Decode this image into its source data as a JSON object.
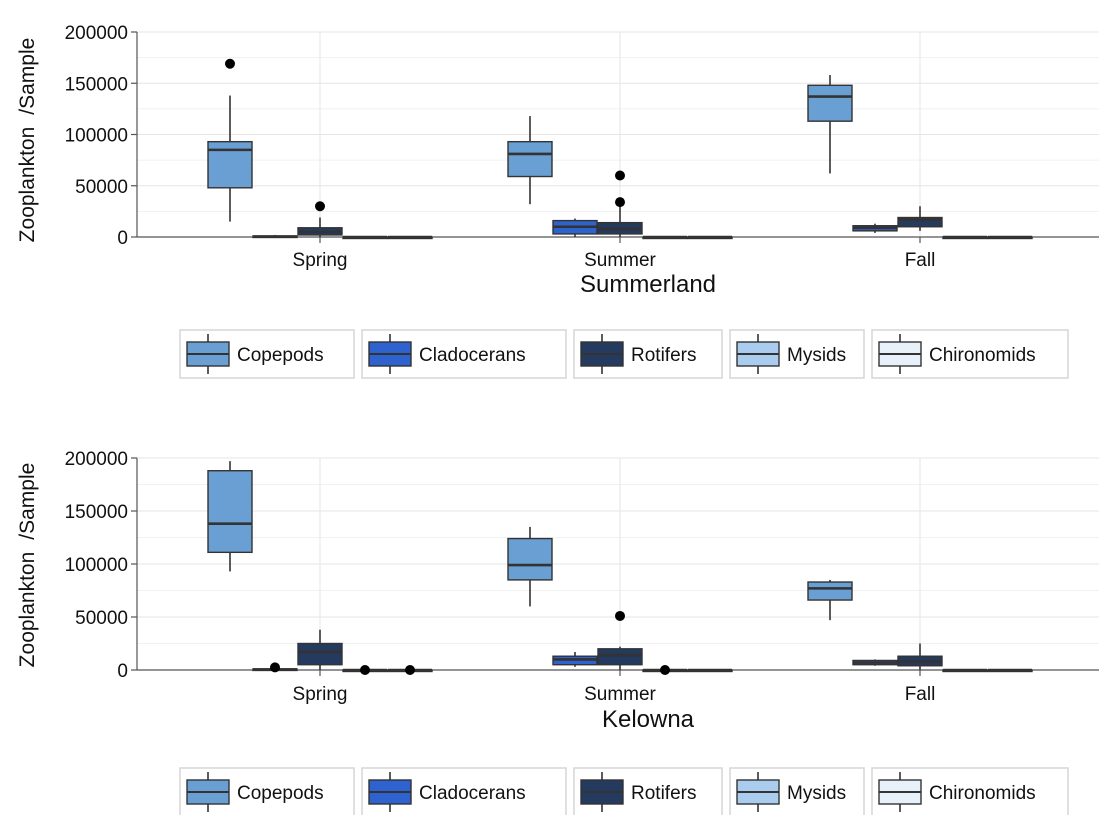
{
  "legend": [
    "Copepods",
    "Cladocerans",
    "Rotifers",
    "Mysids",
    "Chironomids"
  ],
  "colors": {
    "Copepods": "#6a9fd3",
    "Cladocerans": "#2e62cf",
    "Rotifers": "#253a5f",
    "Mysids": "#a9ccef",
    "Chironomids": "#e8f0fa",
    "grid": "#e6e6e6",
    "axis": "#555555",
    "box_line": "#333333"
  },
  "chart_data": [
    {
      "type": "box",
      "title": "",
      "xlabel": "Summerland",
      "ylabel_parts": [
        "Zooplankton",
        "/Sample"
      ],
      "ylim": [
        0,
        200000
      ],
      "yticks": [
        "0",
        "50000",
        "100000",
        "150000",
        "200000"
      ],
      "categories": [
        "Spring",
        "Summer",
        "Fall"
      ],
      "series": [
        {
          "name": "Copepods",
          "boxes": [
            {
              "min": 15000,
              "q1": 48000,
              "median": 85000,
              "q3": 93000,
              "max": 138000,
              "outliers": [
                169000
              ]
            },
            {
              "min": 32000,
              "q1": 59000,
              "median": 81000,
              "q3": 93000,
              "max": 118000,
              "outliers": []
            },
            {
              "min": 62000,
              "q1": 113000,
              "median": 137000,
              "q3": 148000,
              "max": 158000,
              "outliers": []
            }
          ]
        },
        {
          "name": "Cladocerans",
          "boxes": [
            {
              "min": 0,
              "q1": 0,
              "median": 500,
              "q3": 1000,
              "max": 2000,
              "outliers": []
            },
            {
              "min": 0,
              "q1": 3000,
              "median": 10000,
              "q3": 16000,
              "max": 18000,
              "outliers": []
            },
            {
              "min": 4000,
              "q1": 6000,
              "median": 9000,
              "q3": 11000,
              "max": 13000,
              "outliers": []
            }
          ]
        },
        {
          "name": "Rotifers",
          "boxes": [
            {
              "min": 0,
              "q1": 2000,
              "median": 5000,
              "q3": 9000,
              "max": 19000,
              "outliers": [
                30000
              ]
            },
            {
              "min": 0,
              "q1": 3000,
              "median": 8000,
              "q3": 14000,
              "max": 30000,
              "outliers": [
                34000,
                60000
              ]
            },
            {
              "min": 6000,
              "q1": 10000,
              "median": 17000,
              "q3": 19000,
              "max": 30000,
              "outliers": []
            }
          ]
        },
        {
          "name": "Mysids",
          "boxes": [
            {
              "min": 0,
              "q1": 0,
              "median": 0,
              "q3": 0,
              "max": 0,
              "outliers": []
            },
            {
              "min": 0,
              "q1": 0,
              "median": 0,
              "q3": 0,
              "max": 0,
              "outliers": []
            },
            {
              "min": 0,
              "q1": 0,
              "median": 0,
              "q3": 0,
              "max": 0,
              "outliers": []
            }
          ]
        },
        {
          "name": "Chironomids",
          "boxes": [
            {
              "min": 0,
              "q1": 0,
              "median": 0,
              "q3": 0,
              "max": 0,
              "outliers": []
            },
            {
              "min": 0,
              "q1": 0,
              "median": 0,
              "q3": 0,
              "max": 0,
              "outliers": []
            },
            {
              "min": 0,
              "q1": 0,
              "median": 0,
              "q3": 0,
              "max": 0,
              "outliers": []
            }
          ]
        }
      ]
    },
    {
      "type": "box",
      "title": "",
      "xlabel": "Kelowna",
      "ylabel_parts": [
        "Zooplankton",
        "/Sample"
      ],
      "ylim": [
        0,
        200000
      ],
      "yticks": [
        "0",
        "50000",
        "100000",
        "150000",
        "200000"
      ],
      "categories": [
        "Spring",
        "Summer",
        "Fall"
      ],
      "series": [
        {
          "name": "Copepods",
          "boxes": [
            {
              "min": 93000,
              "q1": 111000,
              "median": 138000,
              "q3": 188000,
              "max": 197000,
              "outliers": []
            },
            {
              "min": 60000,
              "q1": 85000,
              "median": 99000,
              "q3": 124000,
              "max": 135000,
              "outliers": []
            },
            {
              "min": 47000,
              "q1": 66000,
              "median": 77000,
              "q3": 83000,
              "max": 85000,
              "outliers": []
            }
          ]
        },
        {
          "name": "Cladocerans",
          "boxes": [
            {
              "min": 0,
              "q1": 0,
              "median": 500,
              "q3": 1000,
              "max": 2000,
              "outliers": [
                2500
              ]
            },
            {
              "min": 3000,
              "q1": 5000,
              "median": 10000,
              "q3": 13000,
              "max": 17000,
              "outliers": []
            },
            {
              "min": 4000,
              "q1": 5000,
              "median": 7000,
              "q3": 9000,
              "max": 10000,
              "outliers": []
            }
          ]
        },
        {
          "name": "Rotifers",
          "boxes": [
            {
              "min": 0,
              "q1": 5000,
              "median": 17000,
              "q3": 25000,
              "max": 38000,
              "outliers": []
            },
            {
              "min": 0,
              "q1": 5000,
              "median": 14000,
              "q3": 20000,
              "max": 22000,
              "outliers": [
                51000
              ]
            },
            {
              "min": 0,
              "q1": 4000,
              "median": 8000,
              "q3": 13000,
              "max": 25000,
              "outliers": []
            }
          ]
        },
        {
          "name": "Mysids",
          "boxes": [
            {
              "min": 0,
              "q1": 0,
              "median": 0,
              "q3": 0,
              "max": 0,
              "outliers": [
                0
              ]
            },
            {
              "min": 0,
              "q1": 0,
              "median": 0,
              "q3": 0,
              "max": 0,
              "outliers": [
                0
              ]
            },
            {
              "min": 0,
              "q1": 0,
              "median": 0,
              "q3": 0,
              "max": 0,
              "outliers": []
            }
          ]
        },
        {
          "name": "Chironomids",
          "boxes": [
            {
              "min": 0,
              "q1": 0,
              "median": 0,
              "q3": 0,
              "max": 0,
              "outliers": [
                0
              ]
            },
            {
              "min": 0,
              "q1": 0,
              "median": 0,
              "q3": 0,
              "max": 0,
              "outliers": []
            },
            {
              "min": 0,
              "q1": 0,
              "median": 0,
              "q3": 0,
              "max": 0,
              "outliers": []
            }
          ]
        }
      ]
    }
  ]
}
